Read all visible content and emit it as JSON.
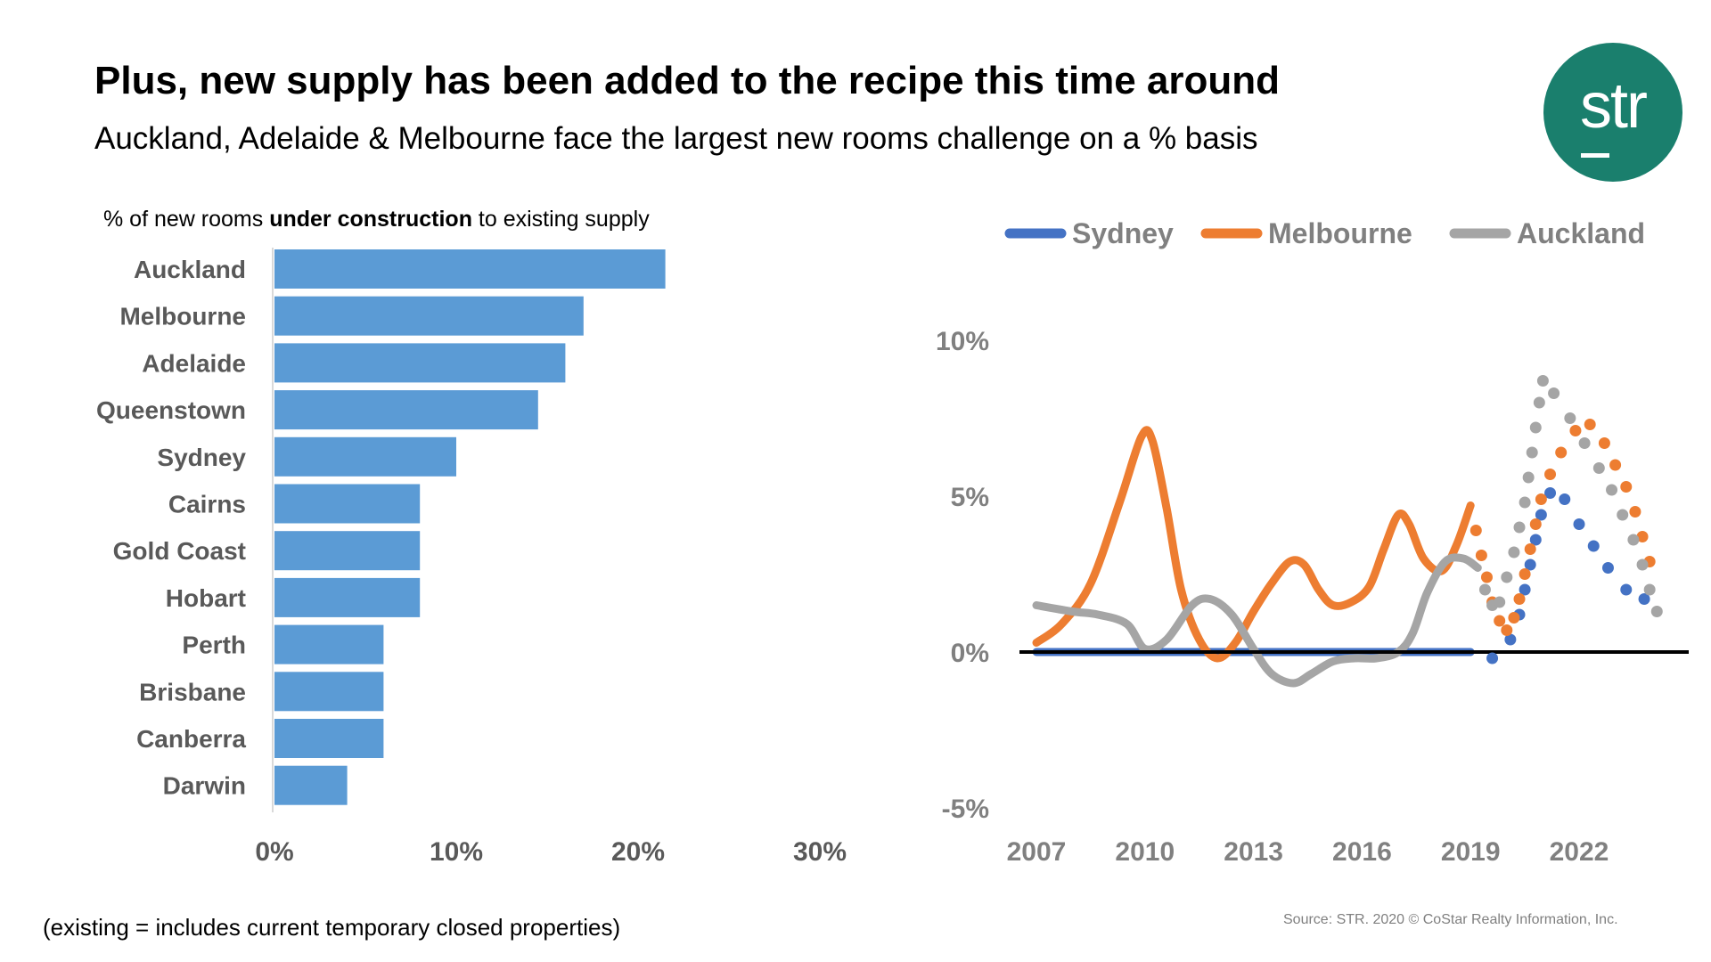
{
  "header": {
    "title": "Plus, new supply has been added to the recipe this time around",
    "subtitle": "Auckland, Adelaide & Melbourne face the largest new rooms challenge on a % basis"
  },
  "logo": {
    "text": "str",
    "color": "#1a7f6d"
  },
  "footer": {
    "note": "(existing = includes current temporary closed properties)",
    "source": "Source: STR. 2020 © CoStar Realty Information, Inc."
  },
  "chart_data": [
    {
      "type": "bar",
      "orientation": "horizontal",
      "title_parts": [
        "% of new rooms ",
        "under construction",
        " to existing supply"
      ],
      "categories": [
        "Auckland",
        "Melbourne",
        "Adelaide",
        "Queenstown",
        "Sydney",
        "Cairns",
        "Gold Coast",
        "Hobart",
        "Perth",
        "Brisbane",
        "Canberra",
        "Darwin"
      ],
      "values": [
        21.5,
        17,
        16,
        14.5,
        10,
        8,
        8,
        8,
        6,
        6,
        6,
        4
      ],
      "xlim": [
        0,
        30
      ],
      "xticks": [
        0,
        10,
        20,
        30
      ],
      "xtick_labels": [
        "0%",
        "10%",
        "20%",
        "30%"
      ],
      "color": "#5b9bd5"
    },
    {
      "type": "line",
      "legend": [
        "Sydney",
        "Melbourne",
        "Auckland"
      ],
      "ylim": [
        -5,
        10
      ],
      "yticks": [
        10,
        5,
        0,
        -5
      ],
      "ytick_labels": [
        "10%",
        "5%",
        "0%",
        "-5%"
      ],
      "xticks": [
        2007,
        2010,
        2013,
        2016,
        2019,
        2022
      ],
      "xtick_labels": [
        "2007",
        "2010",
        "2013",
        "2016",
        "2019",
        "2022"
      ],
      "series": [
        {
          "name": "Sydney",
          "color": "#4472c4",
          "actual_x": [
            2007,
            2008,
            2009,
            2010,
            2011,
            2012,
            2013,
            2014,
            2015,
            2016,
            2017,
            2018,
            2019
          ],
          "actual_y": [
            0,
            0,
            0,
            0,
            0,
            0,
            0,
            0,
            0,
            0,
            0,
            0,
            0
          ],
          "forecast_x": [
            2019.6,
            2020.1,
            2020.35,
            2020.5,
            2020.65,
            2020.8,
            2020.95,
            2021.2,
            2021.6,
            2022.0,
            2022.4,
            2022.8,
            2023.3,
            2023.8
          ],
          "forecast_y": [
            -0.2,
            0.4,
            1.2,
            2.0,
            2.8,
            3.6,
            4.4,
            5.1,
            4.9,
            4.1,
            3.4,
            2.7,
            2.0,
            1.7
          ]
        },
        {
          "name": "Melbourne",
          "color": "#ed7d31",
          "actual_x": [
            2007,
            2007.7,
            2008.5,
            2009.3,
            2009.9,
            2010.2,
            2010.6,
            2011.0,
            2011.5,
            2012.0,
            2012.5,
            2013.0,
            2013.5,
            2014.0,
            2014.4,
            2014.8,
            2015.2,
            2015.7,
            2016.2,
            2016.6,
            2017.0,
            2017.3,
            2017.7,
            2018.2,
            2018.6,
            2019.0
          ],
          "actual_y": [
            0.3,
            0.9,
            2.2,
            4.8,
            6.9,
            6.8,
            4.6,
            2.0,
            0.4,
            -0.2,
            0.3,
            1.3,
            2.2,
            2.9,
            2.8,
            2.0,
            1.5,
            1.6,
            2.1,
            3.3,
            4.4,
            4.1,
            3.0,
            2.6,
            3.4,
            4.7
          ],
          "forecast_x": [
            2019.15,
            2019.3,
            2019.45,
            2019.6,
            2019.8,
            2020.0,
            2020.2,
            2020.35,
            2020.5,
            2020.65,
            2020.8,
            2020.95,
            2021.2,
            2021.5,
            2021.9,
            2022.3,
            2022.7,
            2023.0,
            2023.3,
            2023.55,
            2023.75,
            2023.95
          ],
          "forecast_y": [
            3.9,
            3.1,
            2.4,
            1.6,
            1.0,
            0.7,
            1.1,
            1.7,
            2.5,
            3.3,
            4.1,
            4.9,
            5.7,
            6.4,
            7.1,
            7.3,
            6.7,
            6.0,
            5.3,
            4.5,
            3.7,
            2.9
          ]
        },
        {
          "name": "Auckland",
          "color": "#a5a5a5",
          "actual_x": [
            2007,
            2008,
            2008.7,
            2009.5,
            2010.0,
            2010.6,
            2011.3,
            2011.8,
            2012.4,
            2013.0,
            2013.5,
            2014.1,
            2014.6,
            2015.2,
            2015.8,
            2016.4,
            2017.0,
            2017.4,
            2017.8,
            2018.3,
            2018.8,
            2019.2
          ],
          "actual_y": [
            1.5,
            1.3,
            1.2,
            0.9,
            0.1,
            0.4,
            1.5,
            1.7,
            1.2,
            0.1,
            -0.7,
            -1.0,
            -0.7,
            -0.3,
            -0.2,
            -0.2,
            0.0,
            0.6,
            1.9,
            2.9,
            3.0,
            2.7
          ],
          "forecast_x": [
            2019.4,
            2019.6,
            2019.8,
            2020.0,
            2020.2,
            2020.35,
            2020.5,
            2020.6,
            2020.7,
            2020.8,
            2020.9,
            2021.0,
            2021.3,
            2021.75,
            2022.15,
            2022.55,
            2022.9,
            2023.2,
            2023.5,
            2023.75,
            2023.95,
            2024.15
          ],
          "forecast_y": [
            2.0,
            1.5,
            1.6,
            2.4,
            3.2,
            4.0,
            4.8,
            5.6,
            6.4,
            7.2,
            8.0,
            8.7,
            8.3,
            7.5,
            6.7,
            5.9,
            5.2,
            4.4,
            3.6,
            2.8,
            2.0,
            1.3
          ]
        }
      ]
    }
  ]
}
